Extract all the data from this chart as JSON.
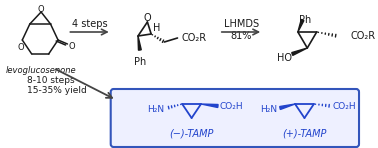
{
  "bg_color": "#ffffff",
  "blue_color": "#2244cc",
  "black_color": "#1a1a1a",
  "arrow_color": "#444444",
  "box_edge_color": "#3355bb",
  "box_face_color": "#eef0ff",
  "step1_label": "4 steps",
  "step2_label": "LHMDS",
  "step2_yield": "81%",
  "step3_label": "8-10 steps",
  "step3_yield": "15-35% yield",
  "mol1_label": "levoglucosenone",
  "mol4_label1": "(−)-TAMP",
  "mol4_label2": "(+)-TAMP",
  "figsize": [
    3.78,
    1.48
  ],
  "dpi": 100
}
